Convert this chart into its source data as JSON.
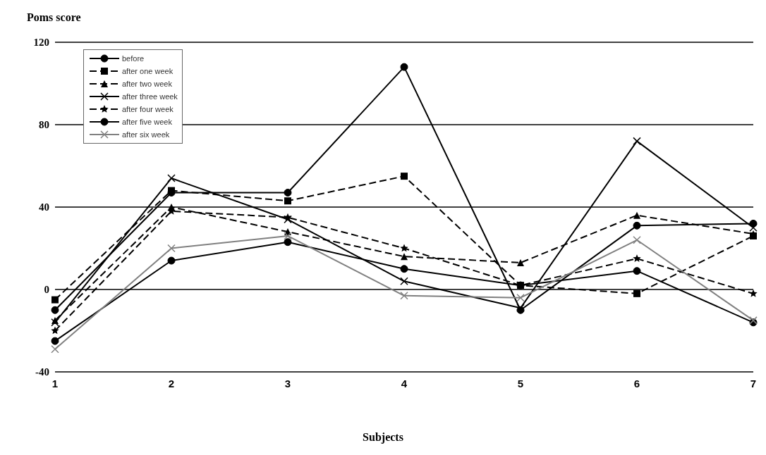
{
  "chart_data": {
    "type": "line",
    "ylabel": "Poms score",
    "xlabel": "Subjects",
    "categories": [
      "1",
      "2",
      "3",
      "4",
      "5",
      "6",
      "7"
    ],
    "series": [
      {
        "name": "before",
        "color": "#000000",
        "marker": "circle",
        "line_style": "solid",
        "values": [
          -10,
          47,
          47,
          108,
          -10,
          31,
          32
        ]
      },
      {
        "name": "after one week",
        "color": "#000000",
        "marker": "square",
        "line_style": "dashed",
        "values": [
          -5,
          48,
          43,
          55,
          2,
          -2,
          26
        ]
      },
      {
        "name": "after two week",
        "color": "#000000",
        "marker": "triangle",
        "line_style": "dashed",
        "values": [
          -15,
          40,
          28,
          16,
          13,
          36,
          27
        ]
      },
      {
        "name": "after three week",
        "color": "#000000",
        "marker": "cross",
        "line_style": "solid",
        "values": [
          -16,
          54,
          34,
          4,
          -9,
          72,
          30
        ]
      },
      {
        "name": "after four week",
        "color": "#000000",
        "marker": "star",
        "line_style": "dashed",
        "values": [
          -20,
          38,
          35,
          20,
          2,
          15,
          -2
        ]
      },
      {
        "name": "after five week",
        "color": "#000000",
        "marker": "circle",
        "line_style": "solid",
        "values": [
          -25,
          14,
          23,
          10,
          2,
          9,
          -16
        ]
      },
      {
        "name": "after six week",
        "color": "#808080",
        "marker": "cross",
        "line_style": "solid",
        "values": [
          -29,
          20,
          26,
          -3,
          -4,
          24,
          -15
        ]
      }
    ],
    "ylim": [
      -40,
      120
    ],
    "yticks": [
      -40,
      0,
      40,
      80,
      120
    ],
    "grid": "y",
    "legend": "top left"
  }
}
